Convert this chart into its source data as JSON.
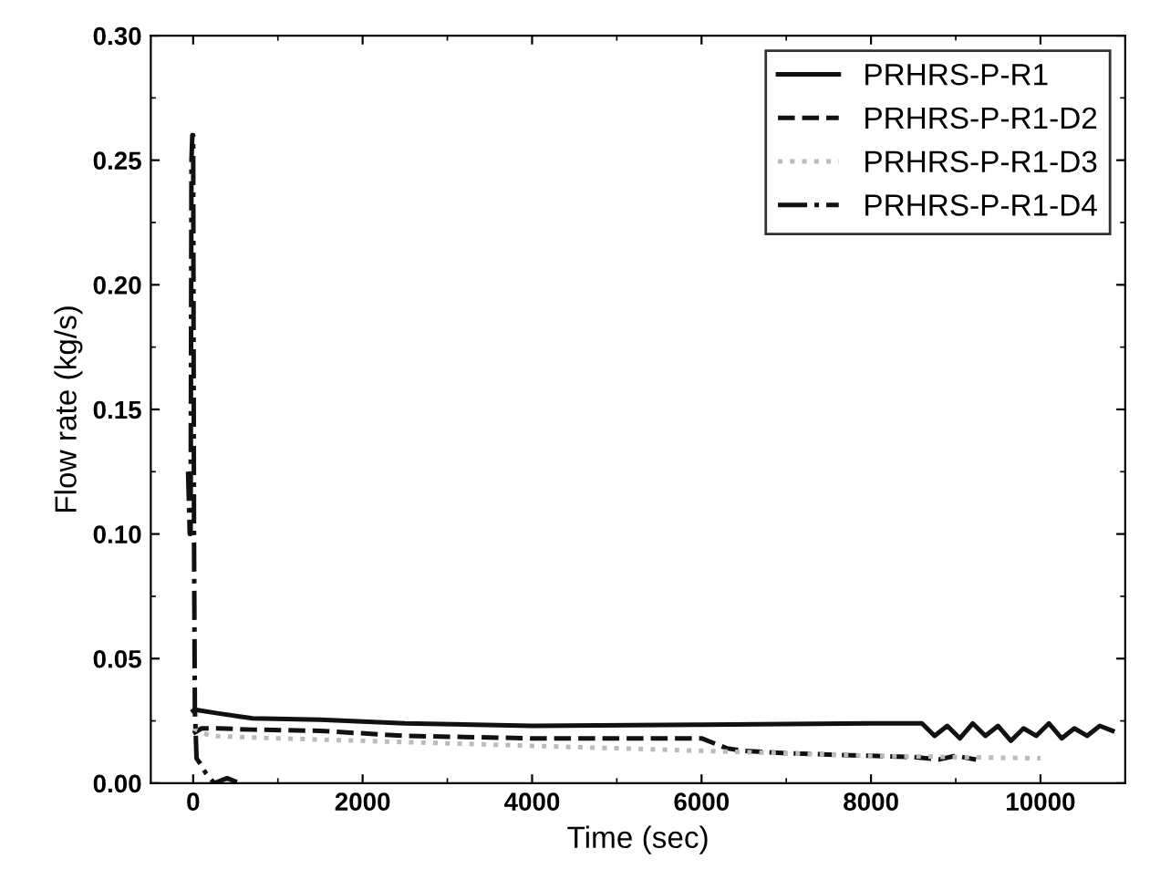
{
  "chart_data": {
    "type": "line",
    "xlabel": "Time (sec)",
    "ylabel": "Flow rate (kg/s)",
    "xlim": [
      -500,
      11000
    ],
    "ylim": [
      0,
      0.3
    ],
    "xticks": [
      0,
      2000,
      4000,
      6000,
      8000,
      10000
    ],
    "yticks": [
      {
        "value": 0,
        "label": "0.00"
      },
      {
        "value": 0.05,
        "label": "0.05"
      },
      {
        "value": 0.1,
        "label": "0.10"
      },
      {
        "value": 0.15,
        "label": "0.15"
      },
      {
        "value": 0.2,
        "label": "0.20"
      },
      {
        "value": 0.25,
        "label": "0.25"
      },
      {
        "value": 0.3,
        "label": "0.30"
      }
    ],
    "grid": false,
    "legend": "top right",
    "series": [
      {
        "name": "PRHRS-P-R1",
        "color": "#111111",
        "line_style": "solid",
        "x": [
          0,
          20,
          300,
          700,
          1500,
          2500,
          4000,
          6000,
          8000,
          8600,
          8750,
          8900,
          9050,
          9200,
          9350,
          9500,
          9650,
          9800,
          9950,
          10100,
          10250,
          10400,
          10550,
          10700,
          10850
        ],
        "values": [
          0.029,
          0.0295,
          0.028,
          0.026,
          0.0255,
          0.024,
          0.023,
          0.0235,
          0.024,
          0.024,
          0.019,
          0.023,
          0.018,
          0.024,
          0.019,
          0.023,
          0.017,
          0.022,
          0.019,
          0.024,
          0.018,
          0.022,
          0.019,
          0.023,
          0.021
        ]
      },
      {
        "name": "PRHRS-P-R1-D2",
        "color": "#111111",
        "line_style": "dashed",
        "x": [
          0,
          100,
          300,
          700,
          1500,
          2500,
          4000,
          6000,
          6300,
          6500,
          7000,
          7500,
          8000,
          8500,
          8800,
          9000,
          9240
        ],
        "values": [
          0.02,
          0.022,
          0.022,
          0.0215,
          0.021,
          0.019,
          0.018,
          0.018,
          0.014,
          0.013,
          0.012,
          0.0115,
          0.011,
          0.0105,
          0.0095,
          0.011,
          0.0095
        ]
      },
      {
        "name": "PRHRS-P-R1-D3",
        "color": "#bbbbbb",
        "line_style": "dotted",
        "x": [
          0,
          200,
          1000,
          2000,
          3000,
          4000,
          5000,
          6000,
          7000,
          8000,
          9000,
          10000
        ],
        "values": [
          0.022,
          0.019,
          0.018,
          0.017,
          0.016,
          0.015,
          0.014,
          0.013,
          0.012,
          0.011,
          0.0105,
          0.01
        ]
      },
      {
        "name": "PRHRS-P-R1-D4",
        "color": "#111111",
        "line_style": "dashdot",
        "x": [
          -60,
          -40,
          -30,
          -20,
          -10,
          0,
          10,
          20,
          40,
          80,
          150,
          250,
          400,
          550
        ],
        "values": [
          0.125,
          0.1,
          0.1,
          0.25,
          0.26,
          0.26,
          0.1,
          0.03,
          0.01,
          0.008,
          0.004,
          0.0,
          0.002,
          0.0
        ]
      }
    ]
  }
}
